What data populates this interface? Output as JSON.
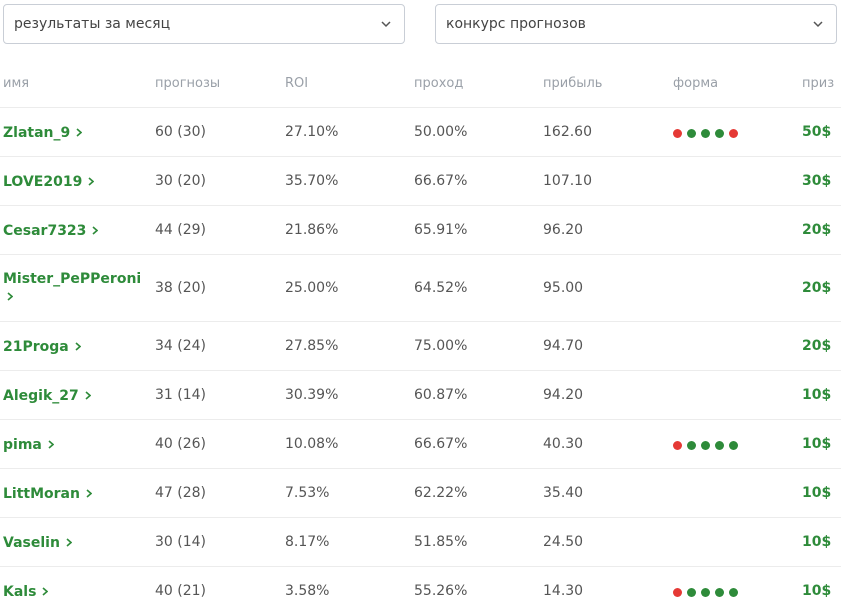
{
  "filters": {
    "period": "результаты за месяц",
    "contest": "конкурс прогнозов"
  },
  "colors": {
    "link": "#2e8b3a",
    "win": "#2e8b3a",
    "loss": "#e53935",
    "muted": "#9aa0a8"
  },
  "table": {
    "headers": {
      "name": "имя",
      "predictions": "прогнозы",
      "roi": "ROI",
      "pass": "проход",
      "profit": "прибыль",
      "form": "форма",
      "prize": "приз"
    },
    "rows": [
      {
        "name": "Zlatan_9",
        "predictions": "60 (30)",
        "roi": "27.10%",
        "pass": "50.00%",
        "profit": "162.60",
        "form": [
          "loss",
          "win",
          "win",
          "win",
          "loss"
        ],
        "prize": "50$"
      },
      {
        "name": "LOVE2019",
        "predictions": "30 (20)",
        "roi": "35.70%",
        "pass": "66.67%",
        "profit": "107.10",
        "form": [],
        "prize": "30$"
      },
      {
        "name": "Cesar7323",
        "predictions": "44 (29)",
        "roi": "21.86%",
        "pass": "65.91%",
        "profit": "96.20",
        "form": [],
        "prize": "20$"
      },
      {
        "name": "Mister_PePPeroni",
        "predictions": "38 (20)",
        "roi": "25.00%",
        "pass": "64.52%",
        "profit": "95.00",
        "form": [],
        "prize": "20$"
      },
      {
        "name": "21Proga",
        "predictions": "34 (24)",
        "roi": "27.85%",
        "pass": "75.00%",
        "profit": "94.70",
        "form": [],
        "prize": "20$"
      },
      {
        "name": "Alegik_27",
        "predictions": "31 (14)",
        "roi": "30.39%",
        "pass": "60.87%",
        "profit": "94.20",
        "form": [],
        "prize": "10$"
      },
      {
        "name": "pima",
        "predictions": "40 (26)",
        "roi": "10.08%",
        "pass": "66.67%",
        "profit": "40.30",
        "form": [
          "loss",
          "win",
          "win",
          "win",
          "win"
        ],
        "prize": "10$"
      },
      {
        "name": "LittMoran",
        "predictions": "47 (28)",
        "roi": "7.53%",
        "pass": "62.22%",
        "profit": "35.40",
        "form": [],
        "prize": "10$"
      },
      {
        "name": "Vaselin",
        "predictions": "30 (14)",
        "roi": "8.17%",
        "pass": "51.85%",
        "profit": "24.50",
        "form": [],
        "prize": "10$"
      },
      {
        "name": "Kals",
        "predictions": "40 (21)",
        "roi": "3.58%",
        "pass": "55.26%",
        "profit": "14.30",
        "form": [
          "loss",
          "win",
          "win",
          "win",
          "win"
        ],
        "prize": "10$"
      }
    ]
  }
}
